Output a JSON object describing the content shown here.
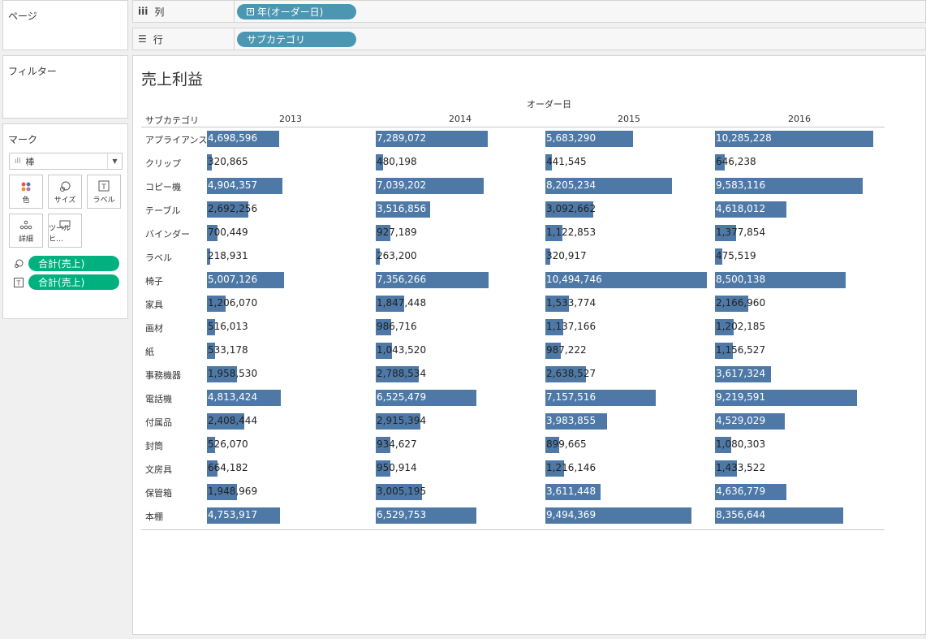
{
  "panels": {
    "pages_label": "ページ",
    "filters_label": "フィルター",
    "marks_label": "マーク"
  },
  "shelves": {
    "columns": {
      "icon": "iii",
      "label": "列",
      "pill": "年(オーダー日)"
    },
    "rows": {
      "icon": "☰",
      "label": "行",
      "pill": "サブカテゴリ"
    }
  },
  "marks": {
    "type": "棒",
    "buttons": [
      {
        "label": "色",
        "icon": "color-icon"
      },
      {
        "label": "サイズ",
        "icon": "size-icon"
      },
      {
        "label": "ラベル",
        "icon": "label-icon"
      },
      {
        "label": "詳細",
        "icon": "detail-icon"
      },
      {
        "label": "ツールヒ…",
        "icon": "tooltip-icon"
      }
    ],
    "fields": [
      {
        "icon": "size-icon",
        "label": "合計(売上)"
      },
      {
        "icon": "label-icon",
        "label": "合計(売上)"
      }
    ]
  },
  "view": {
    "title": "売上利益",
    "column_header": "オーダー日",
    "row_header": "サブカテゴリ",
    "bar_color": "#4e79a7"
  },
  "chart_data": {
    "type": "bar",
    "orientation": "horizontal",
    "title": "売上利益",
    "xlabel": "オーダー日",
    "ylabel": "サブカテゴリ",
    "columns": [
      "2013",
      "2014",
      "2015",
      "2016"
    ],
    "categories": [
      "アプライアンス",
      "クリップ",
      "コピー機",
      "テーブル",
      "バインダー",
      "ラベル",
      "椅子",
      "家具",
      "画材",
      "紙",
      "事務機器",
      "電話機",
      "付属品",
      "封筒",
      "文房具",
      "保管箱",
      "本棚"
    ],
    "series": [
      {
        "name": "2013",
        "values": [
          4698596,
          320865,
          4904357,
          2692256,
          700449,
          218931,
          5007126,
          1206070,
          516013,
          533178,
          1958530,
          4813424,
          2408444,
          526070,
          664182,
          1948969,
          4753917
        ]
      },
      {
        "name": "2014",
        "values": [
          7289072,
          480198,
          7039202,
          3516856,
          927189,
          263200,
          7356266,
          1847448,
          986716,
          1043520,
          2788534,
          6525479,
          2915394,
          934627,
          950914,
          3005195,
          6529753
        ]
      },
      {
        "name": "2015",
        "values": [
          5683290,
          441545,
          8205234,
          3092662,
          1122853,
          320917,
          10494746,
          1533774,
          1137166,
          987222,
          2638527,
          7157516,
          3983855,
          899665,
          1216146,
          3611448,
          9494369
        ]
      },
      {
        "name": "2016",
        "values": [
          10285228,
          646238,
          9583116,
          4618012,
          1377854,
          475519,
          8500138,
          2166960,
          1202185,
          1156527,
          3617324,
          9219591,
          4529029,
          1080303,
          1433522,
          4636779,
          8356644
        ]
      }
    ],
    "labels": [
      [
        "4,698,596",
        "7,289,072",
        "5,683,290",
        "10,285,228"
      ],
      [
        "320,865",
        "480,198",
        "441,545",
        "646,238"
      ],
      [
        "4,904,357",
        "7,039,202",
        "8,205,234",
        "9,583,116"
      ],
      [
        "2,692,256",
        "3,516,856",
        "3,092,662",
        "4,618,012"
      ],
      [
        "700,449",
        "927,189",
        "1,122,853",
        "1,377,854"
      ],
      [
        "218,931",
        "263,200",
        "320,917",
        "475,519"
      ],
      [
        "5,007,126",
        "7,356,266",
        "10,494,746",
        "8,500,138"
      ],
      [
        "1,206,070",
        "1,847,448",
        "1,533,774",
        "2,166,960"
      ],
      [
        "516,013",
        "986,716",
        "1,137,166",
        "1,202,185"
      ],
      [
        "533,178",
        "1,043,520",
        "987,222",
        "1,156,527"
      ],
      [
        "1,958,530",
        "2,788,534",
        "2,638,527",
        "3,617,324"
      ],
      [
        "4,813,424",
        "6,525,479",
        "7,157,516",
        "9,219,591"
      ],
      [
        "2,408,444",
        "2,915,394",
        "3,983,855",
        "4,529,029"
      ],
      [
        "526,070",
        "934,627",
        "899,665",
        "1,080,303"
      ],
      [
        "664,182",
        "950,914",
        "1,216,146",
        "1,433,522"
      ],
      [
        "1,948,969",
        "3,005,195",
        "3,611,448",
        "4,636,779"
      ],
      [
        "4,753,917",
        "6,529,753",
        "9,494,369",
        "8,356,644"
      ]
    ]
  }
}
